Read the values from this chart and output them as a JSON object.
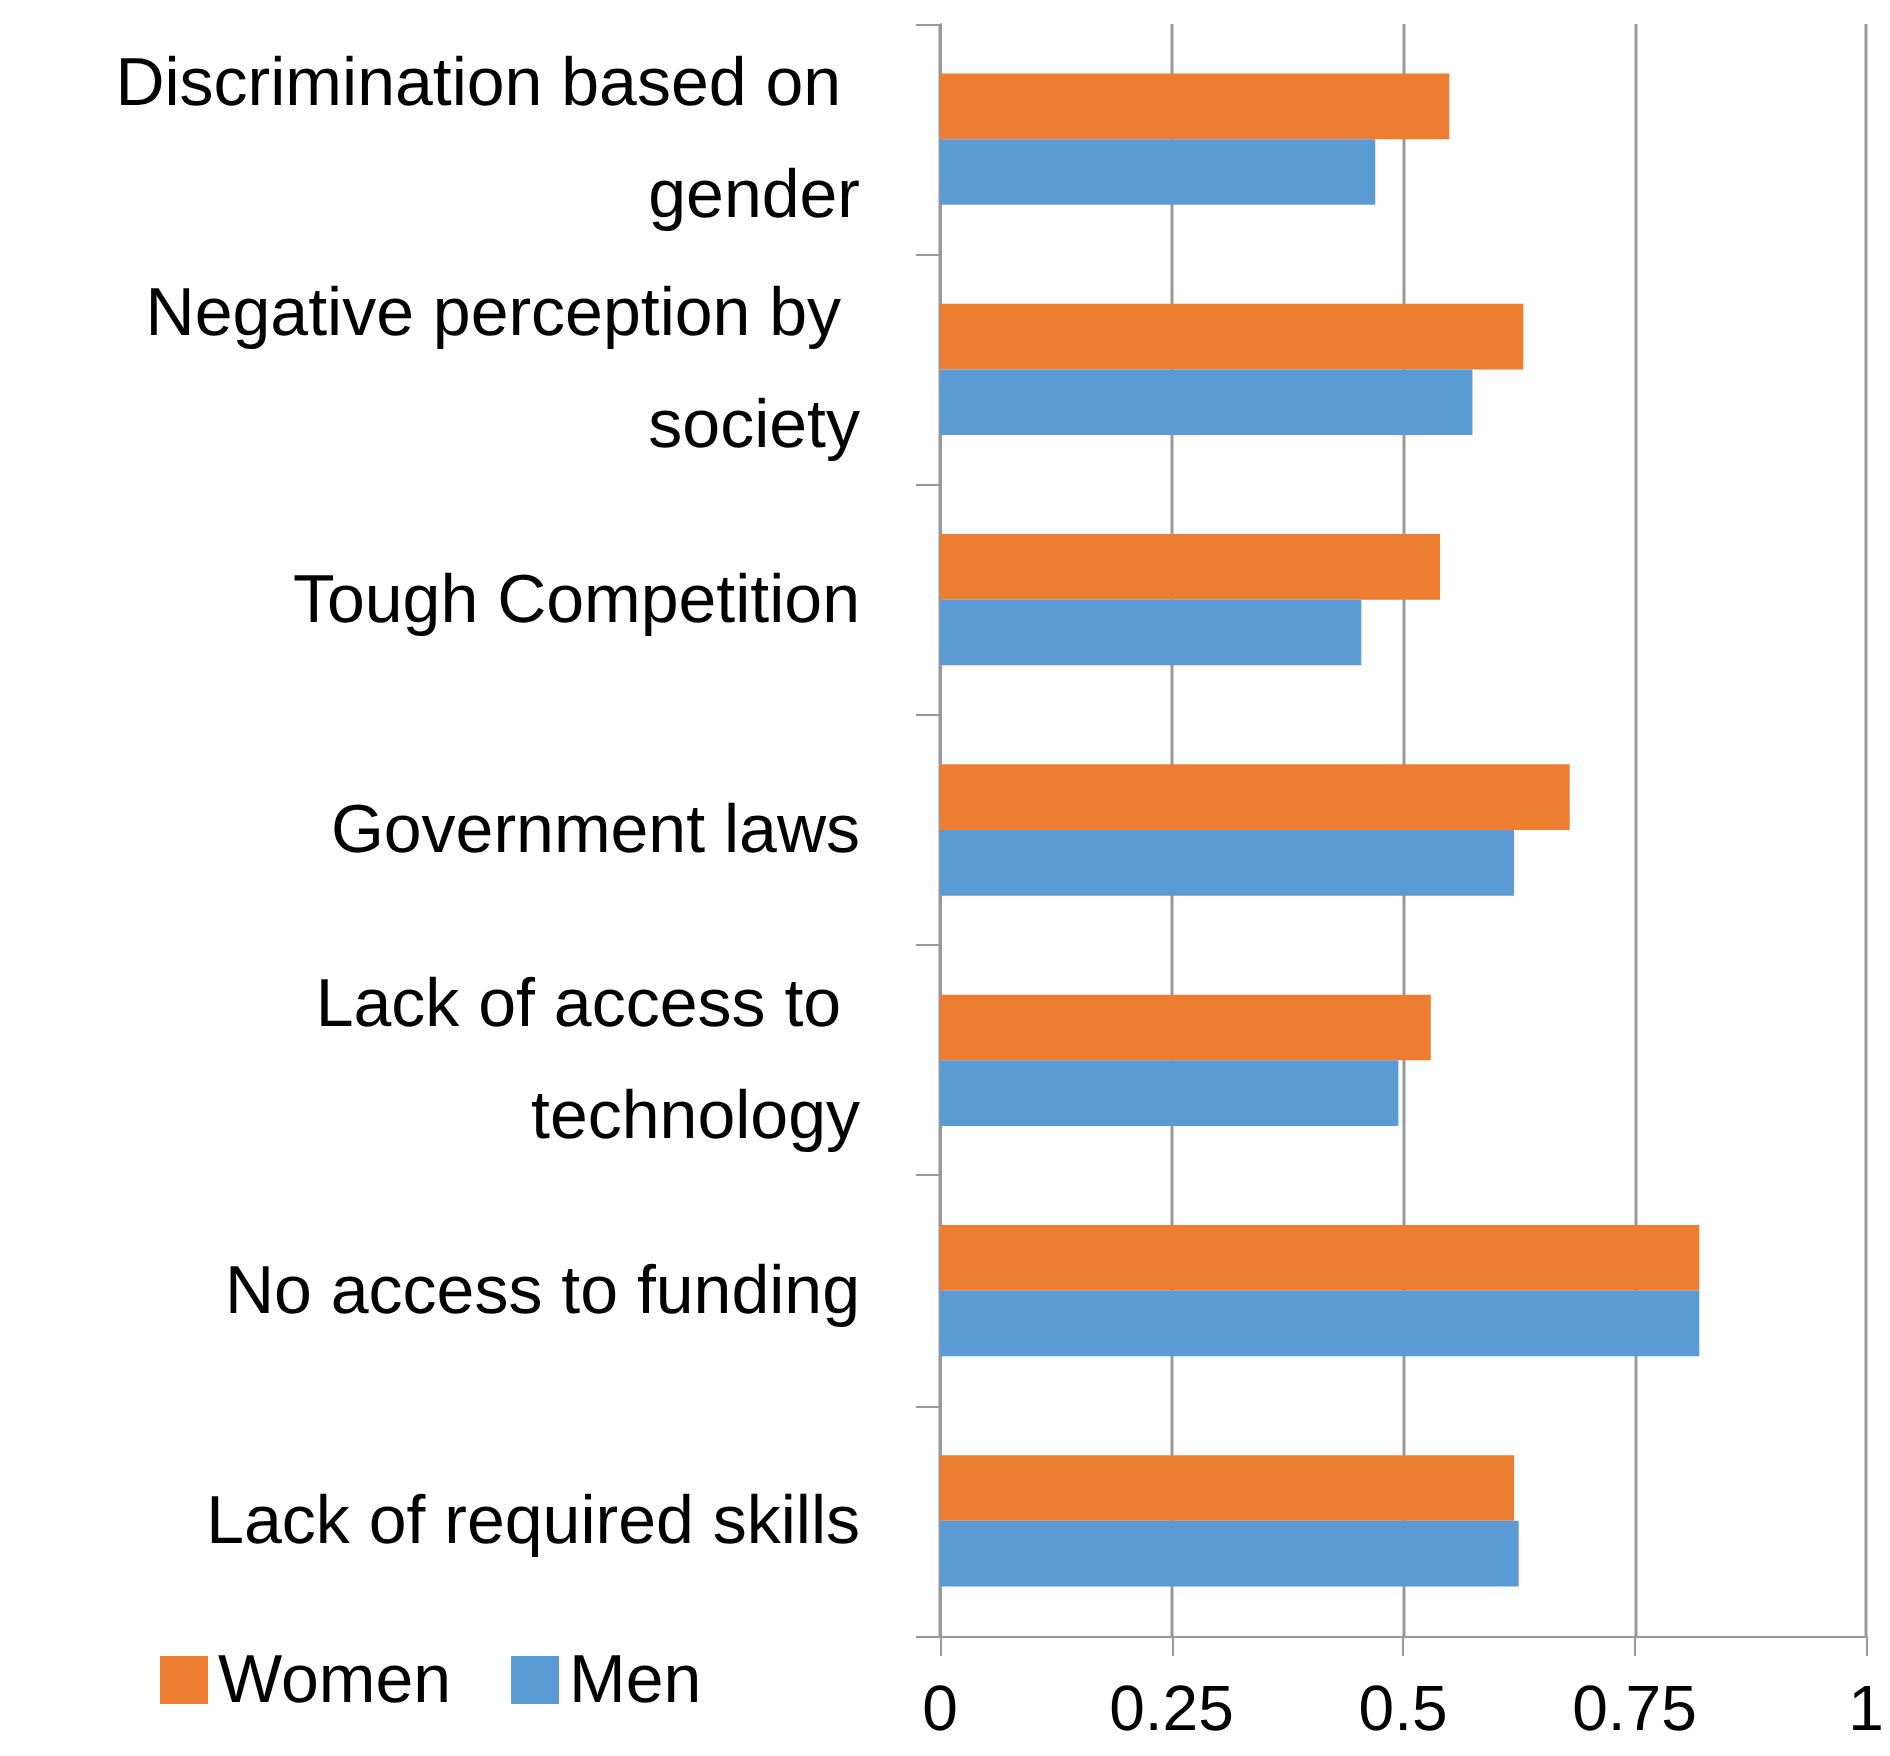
{
  "chart_data": {
    "type": "bar",
    "orientation": "horizontal",
    "categories": [
      "Discrimination based on gender",
      "Negative perception by society",
      "Tough Competition",
      "Government laws",
      "Lack of access to technology",
      "No access to funding",
      "Lack of required skills"
    ],
    "series": [
      {
        "name": "Women",
        "color": "#ed7d31",
        "values": [
          0.55,
          0.63,
          0.54,
          0.68,
          0.53,
          0.82,
          0.62
        ]
      },
      {
        "name": "Men",
        "color": "#5b9bd5",
        "values": [
          0.47,
          0.575,
          0.455,
          0.62,
          0.495,
          0.82,
          0.625
        ]
      }
    ],
    "xlim": [
      0,
      1
    ],
    "xticks": [
      0,
      0.25,
      0.5,
      0.75,
      1
    ],
    "grid": "x",
    "legend": "bottom left"
  }
}
